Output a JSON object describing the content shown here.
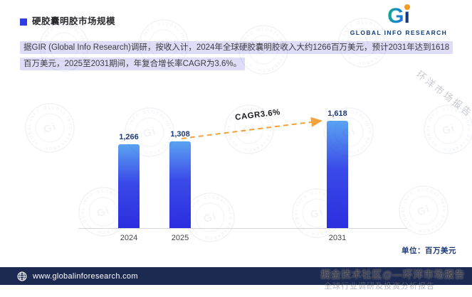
{
  "header": {
    "title": "硬胶囊明胶市场规模"
  },
  "logo": {
    "mark_g": "G",
    "mark_i": "i",
    "name": "GLOBAL INFO RESEARCH"
  },
  "description": {
    "text": "据GIR (Global Info Research)调研，按收入计，2024年全球硬胶囊明胶收入大约1266百万美元，预计2031年达到1618百万美元，2025至2031期间，年复合增长率CAGR为3.6%。"
  },
  "chart_data": {
    "type": "bar",
    "title": "硬胶囊明胶市场规模",
    "categories": [
      "2024",
      "2025",
      "2031"
    ],
    "values": [
      1266,
      1308,
      1618
    ],
    "value_labels": [
      "1,266",
      "1,308",
      "1,618"
    ],
    "annotation": "CAGR3.6%",
    "unit": "单位：百万美元",
    "ylim": [
      0,
      1618
    ],
    "bar_gradient": [
      "#5ba3f2",
      "#2a2ee0"
    ],
    "trendline_color": "#f2a33c",
    "legend": "none",
    "grid": "off"
  },
  "footer": {
    "url": "www.globalinforesearch.com"
  },
  "watermarks": {
    "diagonal": "环洋市场报告",
    "bottom1": "掘金技术社区@—环洋市场报告",
    "bottom2": "全球行业调研及投资分析报告",
    "stamp_ring": "GLOBAL INFO RESEARCH · GLOBAL INFO RESEARCH ·",
    "stamp_center": "Gi"
  }
}
